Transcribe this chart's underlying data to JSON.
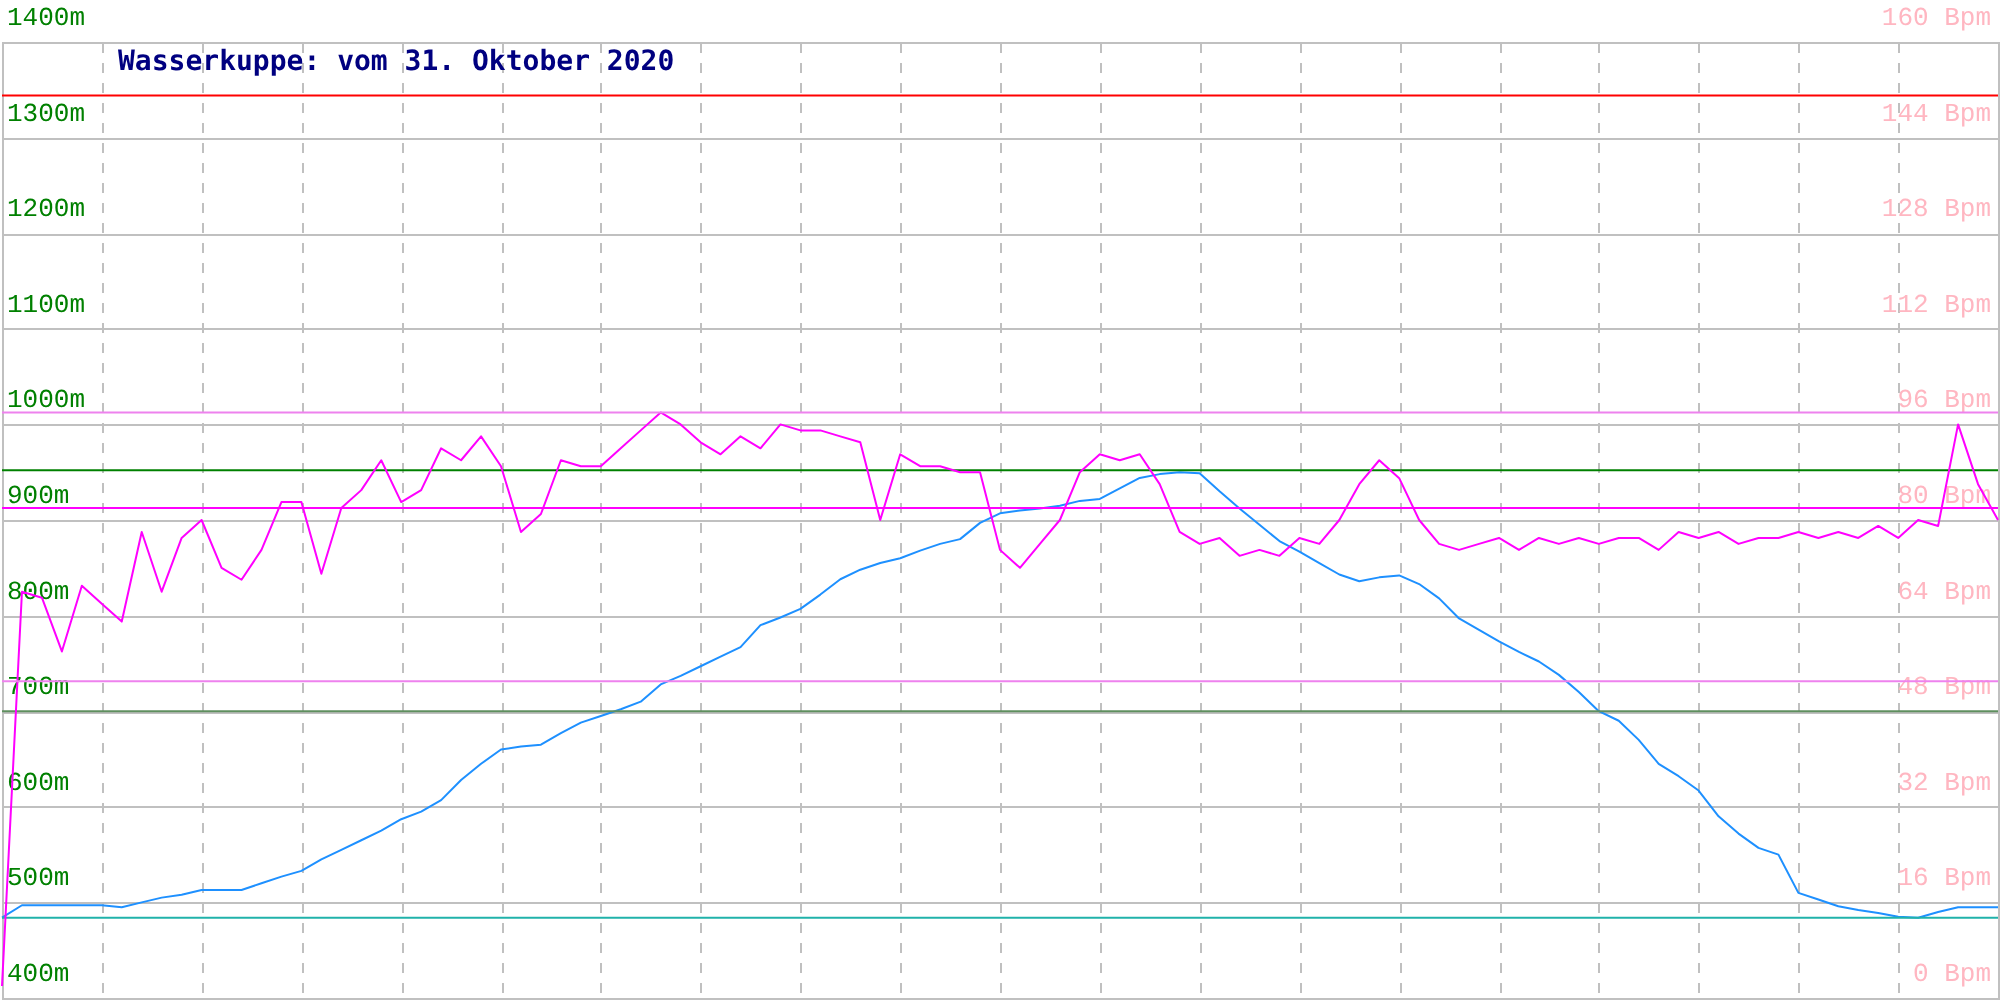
{
  "chart_data": {
    "type": "line",
    "title": "Wasserkuppe: vom 31. Oktober 2020",
    "categories": [
      null,
      null,
      null,
      null,
      null,
      null,
      null,
      null,
      null,
      null,
      null,
      null,
      null,
      null,
      null,
      null,
      null,
      null,
      null,
      null,
      null,
      null,
      null,
      null,
      null,
      null,
      null,
      null,
      null,
      null,
      null,
      null,
      null,
      null,
      null,
      null,
      null,
      null,
      null,
      null,
      null,
      null,
      null,
      null,
      null,
      null,
      null,
      null,
      null,
      null,
      null,
      null,
      null,
      null,
      null,
      null,
      null,
      null,
      null,
      null,
      null,
      null,
      null,
      null,
      null,
      null,
      null,
      null,
      null,
      null,
      null,
      null,
      null,
      null,
      null,
      null,
      null,
      null,
      null,
      null,
      null,
      null,
      null,
      null,
      null,
      null,
      null,
      null,
      null,
      null,
      null,
      null,
      null,
      null,
      null,
      null,
      null,
      null,
      null,
      null,
      null
    ],
    "series": [
      {
        "color": "#1e90ff",
        "values": [
          484,
          497,
          497,
          497,
          497,
          497,
          495,
          500,
          505,
          508,
          513,
          513,
          513,
          520,
          527,
          533,
          545,
          555,
          565,
          575,
          587,
          595,
          607,
          628,
          645,
          660,
          663,
          665,
          677,
          688,
          695,
          702,
          710,
          728,
          737,
          747,
          757,
          767,
          790,
          798,
          807,
          822,
          838,
          848,
          855,
          860,
          868,
          875,
          880,
          897,
          907,
          910,
          912,
          915,
          920,
          922,
          933,
          944,
          948,
          950,
          949,
          930,
          912,
          895,
          878,
          867,
          855,
          843,
          836,
          840,
          842,
          833,
          818,
          797,
          785,
          773,
          762,
          752,
          738,
          720,
          700,
          690,
          670,
          645,
          632,
          617,
          590,
          572,
          557,
          550,
          510,
          503,
          496,
          492,
          489,
          485,
          484,
          490,
          495,
          495,
          495
        ]
      },
      {
        "color": "#ff00ff",
        "axis": "y2",
        "values": [
          2,
          68,
          67,
          58,
          69,
          66,
          63,
          78,
          68,
          77,
          80,
          72,
          70,
          75,
          83,
          83,
          71,
          82,
          85,
          90,
          83,
          85,
          92,
          90,
          94,
          89,
          78,
          81,
          90,
          89,
          89,
          92,
          95,
          98,
          96,
          93,
          91,
          94,
          92,
          96,
          95,
          95,
          94,
          93,
          80,
          91,
          89,
          89,
          88,
          88,
          75,
          72,
          76,
          80,
          88,
          91,
          90,
          91,
          86,
          78,
          76,
          77,
          74,
          75,
          74,
          77,
          76,
          80,
          86,
          90,
          87,
          80,
          76,
          75,
          76,
          77,
          75,
          77,
          76,
          77,
          76,
          77,
          77,
          75,
          78,
          77,
          78,
          76,
          77,
          77,
          78,
          77,
          78,
          77,
          79,
          77,
          80,
          79,
          96,
          86,
          80
        ]
      }
    ],
    "ylim": [
      400,
      1400
    ],
    "yticks": [
      {
        "value": 400,
        "label": "400m"
      },
      {
        "value": 500,
        "label": "500m"
      },
      {
        "value": 600,
        "label": "600m"
      },
      {
        "value": 700,
        "label": "700m"
      },
      {
        "value": 800,
        "label": "800m"
      },
      {
        "value": 900,
        "label": "900m"
      },
      {
        "value": 1000,
        "label": "1000m"
      },
      {
        "value": 1100,
        "label": "1100m"
      },
      {
        "value": 1200,
        "label": "1200m"
      },
      {
        "value": 1300,
        "label": "1300m"
      },
      {
        "value": 1400,
        "label": "1400m"
      }
    ],
    "y2lim": [
      0,
      160
    ],
    "y2ticks": [
      {
        "value": 0,
        "label": "0 Bpm"
      },
      {
        "value": 16,
        "label": "16 Bpm"
      },
      {
        "value": 32,
        "label": "32 Bpm"
      },
      {
        "value": 48,
        "label": "48 Bpm"
      },
      {
        "value": 64,
        "label": "64 Bpm"
      },
      {
        "value": 80,
        "label": "80 Bpm"
      },
      {
        "value": 96,
        "label": "96 Bpm"
      },
      {
        "value": 112,
        "label": "112 Bpm"
      },
      {
        "value": 128,
        "label": "128 Bpm"
      },
      {
        "value": 144,
        "label": "144 Bpm"
      },
      {
        "value": 160,
        "label": "160 Bpm"
      }
    ],
    "ref_lines": [
      {
        "axis": "y",
        "value": 1344,
        "color": "#ff0000"
      },
      {
        "axis": "y",
        "value": 952,
        "color": "#008000"
      },
      {
        "axis": "y",
        "value": 700,
        "color": "#5f8f5f"
      },
      {
        "axis": "y",
        "value": 484,
        "color": "#20b2aa"
      },
      {
        "axis": "y2",
        "value": 98,
        "color": "#ee82ee"
      },
      {
        "axis": "y2",
        "value": 82,
        "color": "#ff00ff"
      },
      {
        "axis": "y2",
        "value": 53,
        "color": "#ee82ee"
      }
    ],
    "grid": true
  }
}
